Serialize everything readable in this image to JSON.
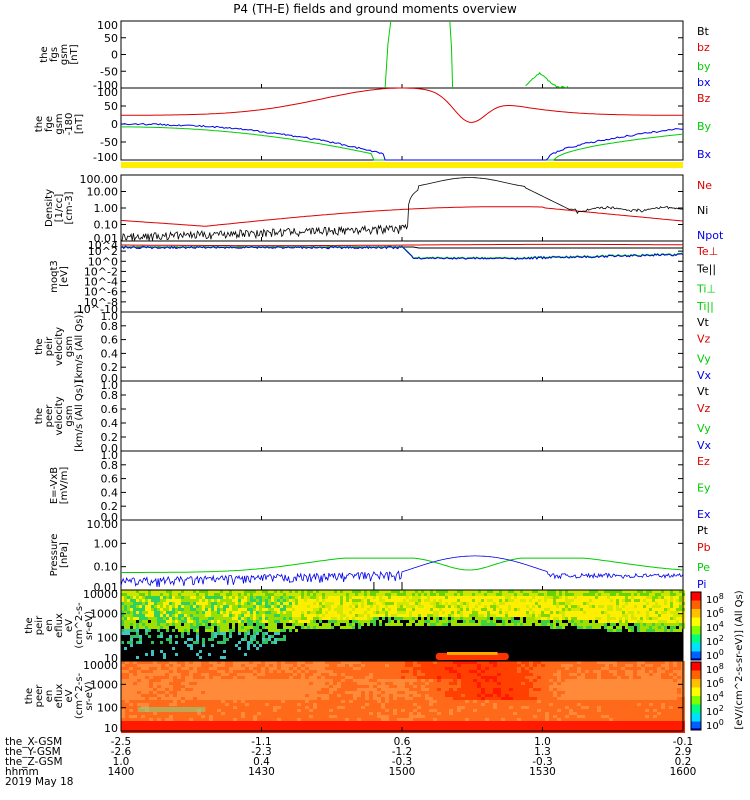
{
  "title": "P4 (TH-E) fields and ground moments overview",
  "colors": {
    "red": "#dd0000",
    "green": "#00cc00",
    "blue": "#0000ee",
    "black": "#000000",
    "yellow": "#ffee00"
  },
  "chart_data": [
    {
      "type": "line",
      "ylabel": [
        "the",
        "fgs",
        "gsm",
        "[nT]"
      ],
      "yticks": [
        "100",
        "50",
        "0",
        "-50",
        "-100"
      ],
      "ylim": [
        -100,
        100
      ],
      "legend": [
        {
          "name": "Bt",
          "color": "black"
        },
        {
          "name": "bz",
          "color": "red"
        },
        {
          "name": "by",
          "color": "green"
        },
        {
          "name": "bx",
          "color": "blue"
        }
      ]
    },
    {
      "type": "line",
      "ylabel": [
        "the",
        "fge",
        "gsm",
        "-180",
        "[nT]"
      ],
      "yticks": [
        "100",
        "50",
        "0",
        "-50",
        "-100"
      ],
      "ylim": [
        -125,
        125
      ],
      "legend": [
        {
          "name": "Bz",
          "color": "red"
        },
        {
          "name": "By",
          "color": "green"
        },
        {
          "name": "Bx",
          "color": "blue"
        }
      ]
    },
    {
      "type": "line",
      "log": true,
      "ylabel": [
        "Density",
        "[1/cc]",
        "[cm-3]"
      ],
      "yticks": [
        "100.00",
        "10.00",
        "1.00",
        "0.10",
        "0.01"
      ],
      "ylim": [
        0.01,
        300
      ],
      "legend": [
        {
          "name": "Ne",
          "color": "red"
        },
        {
          "name": "Ni",
          "color": "black"
        },
        {
          "name": "Npot",
          "color": "blue"
        }
      ]
    },
    {
      "type": "line",
      "log": true,
      "ylabel": [
        "moqt3",
        "[eV]"
      ],
      "yticks": [
        "10^4",
        "10^2",
        "10^0",
        "10^-2",
        "10^-4",
        "10^-6",
        "10^-8",
        "10^-10"
      ],
      "legend": [
        {
          "name": "Te⊥",
          "color": "red"
        },
        {
          "name": "Te||",
          "color": "black"
        },
        {
          "name": "Ti⊥",
          "color": "green"
        },
        {
          "name": "Ti||",
          "color": "green"
        }
      ]
    },
    {
      "type": "line",
      "ylabel": [
        "the",
        "peir",
        "velocity",
        "gsm",
        "[km/s (All Qs)]"
      ],
      "yticks": [
        "1.0",
        "0.8",
        "0.6",
        "0.4",
        "0.2",
        "0.0"
      ],
      "ylim": [
        0,
        1
      ],
      "legend": [
        {
          "name": "Vt",
          "color": "black"
        },
        {
          "name": "Vz",
          "color": "red"
        },
        {
          "name": "Vy",
          "color": "green"
        },
        {
          "name": "Vx",
          "color": "blue"
        }
      ]
    },
    {
      "type": "line",
      "ylabel": [
        "the",
        "peer",
        "velocity",
        "gsm",
        "[km/s (All Qs)]"
      ],
      "yticks": [
        "1.0",
        "0.8",
        "0.6",
        "0.4",
        "0.2",
        "0.0"
      ],
      "ylim": [
        0,
        1
      ],
      "legend": [
        {
          "name": "Vt",
          "color": "black"
        },
        {
          "name": "Vz",
          "color": "red"
        },
        {
          "name": "Vy",
          "color": "green"
        },
        {
          "name": "Vx",
          "color": "blue"
        }
      ]
    },
    {
      "type": "line",
      "ylabel": [
        "E=-VxB",
        "[mV/m]"
      ],
      "yticks": [
        "1.0",
        "0.8",
        "0.6",
        "0.4",
        "0.2",
        "0.0"
      ],
      "ylim": [
        0,
        1
      ],
      "legend": [
        {
          "name": "Ez",
          "color": "red"
        },
        {
          "name": "Ey",
          "color": "green"
        },
        {
          "name": "Ex",
          "color": "blue"
        }
      ]
    },
    {
      "type": "line",
      "log": true,
      "ylabel": [
        "Pressure",
        "[nPa]"
      ],
      "yticks": [
        "10.00",
        "1.00",
        "0.10",
        "0.01"
      ],
      "ylim": [
        0.003,
        30
      ],
      "legend": [
        {
          "name": "Pt",
          "color": "black"
        },
        {
          "name": "Pb",
          "color": "red"
        },
        {
          "name": "Pe",
          "color": "green"
        },
        {
          "name": "Pi",
          "color": "blue"
        }
      ]
    },
    {
      "type": "heatmap",
      "ylabel": [
        "the",
        "peir",
        "en",
        "eflux",
        "eV",
        "(cm^2-s-",
        "sr-eV)"
      ],
      "yticks": [
        "10000",
        "1000",
        "100",
        "10"
      ]
    },
    {
      "type": "heatmap",
      "ylabel": [
        "the",
        "peer",
        "en",
        "eflux",
        "eV",
        "(cm^2-s-",
        "sr-eV)"
      ],
      "yticks": [
        "10000",
        "1000",
        "100",
        "10"
      ]
    }
  ],
  "colorbars": [
    {
      "ticks": [
        "10^8",
        "10^6",
        "10^4",
        "10^2",
        "10^0"
      ],
      "label": "[eV/(cm^2-s-sr-eV)] (All Qs)"
    },
    {
      "ticks": [
        "10^8",
        "10^6",
        "10^4",
        "10^2",
        "10^0"
      ],
      "label": "[eV/(cm^2-s-sr-eV)] (All Qs)"
    }
  ],
  "xaxis": {
    "rows": [
      {
        "name": "the_X-GSM",
        "values": [
          "-2.5",
          "-1.1",
          "0.6",
          "1.0",
          "-0.1"
        ]
      },
      {
        "name": "the_Y-GSM",
        "values": [
          "-2.6",
          "-2.3",
          "-1.2",
          "1.3",
          "2.9"
        ]
      },
      {
        "name": "the_Z-GSM",
        "values": [
          "1.0",
          "0.4",
          "-0.3",
          "-0.3",
          "0.2"
        ]
      },
      {
        "name": "hhmm",
        "values": [
          "1400",
          "1430",
          "1500",
          "1530",
          "1600"
        ]
      }
    ],
    "date": "2019 May 18"
  }
}
